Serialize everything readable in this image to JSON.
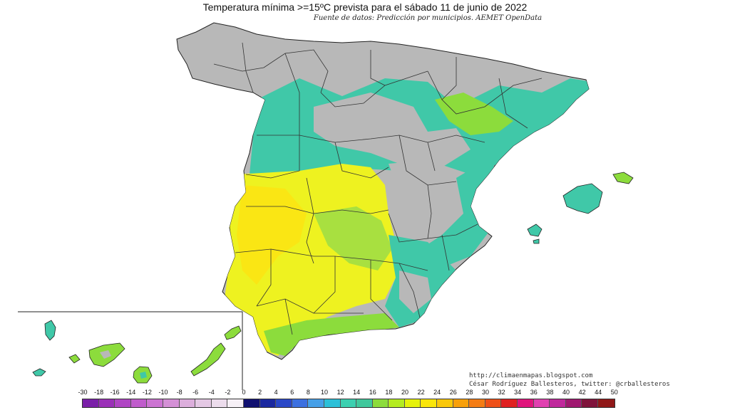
{
  "title": "Temperatura mínima >=15ºC prevista para el sábado 11 de junio de 2022",
  "subtitle": "Fuente de datos: Predicción por municipios. AEMET OpenData",
  "credits": {
    "url": "http://climaenmapas.blogspot.com",
    "author": "César Rodríguez Ballesteros, twitter: @crballesteros"
  },
  "legend": {
    "labels": [
      "-30",
      "-18",
      "-16",
      "-14",
      "-12",
      "-10",
      "-8",
      "-6",
      "-4",
      "-2",
      "0",
      "2",
      "4",
      "6",
      "8",
      "10",
      "12",
      "14",
      "16",
      "18",
      "20",
      "22",
      "24",
      "26",
      "28",
      "30",
      "32",
      "34",
      "36",
      "38",
      "40",
      "42",
      "44",
      "50"
    ],
    "colors": [
      "#7a1fa8",
      "#9b30b8",
      "#b045c4",
      "#c05ccc",
      "#cc74d2",
      "#d490d6",
      "#dcaedc",
      "#e4c8e4",
      "#ecdcec",
      "#f6f0f6",
      "#101070",
      "#1a28a0",
      "#2a48c8",
      "#3c70e0",
      "#46a0e8",
      "#2cc0d8",
      "#3cd0b0",
      "#40c89c",
      "#8cdc3c",
      "#b4ec20",
      "#e6f20a",
      "#fae60a",
      "#fac80a",
      "#f8a00a",
      "#f47c14",
      "#ee5018",
      "#e02020",
      "#e0147c",
      "#e040b0",
      "#c0289c",
      "#a01870",
      "#80143c",
      "#901818"
    ]
  },
  "colors": {
    "no_data_gray": "#b8b8b8",
    "teal_16": "#40c8a0",
    "green_18": "#8cdc3c",
    "yellow_20": "#f0f020",
    "yellow_22": "#fae616",
    "border": "#222222"
  }
}
